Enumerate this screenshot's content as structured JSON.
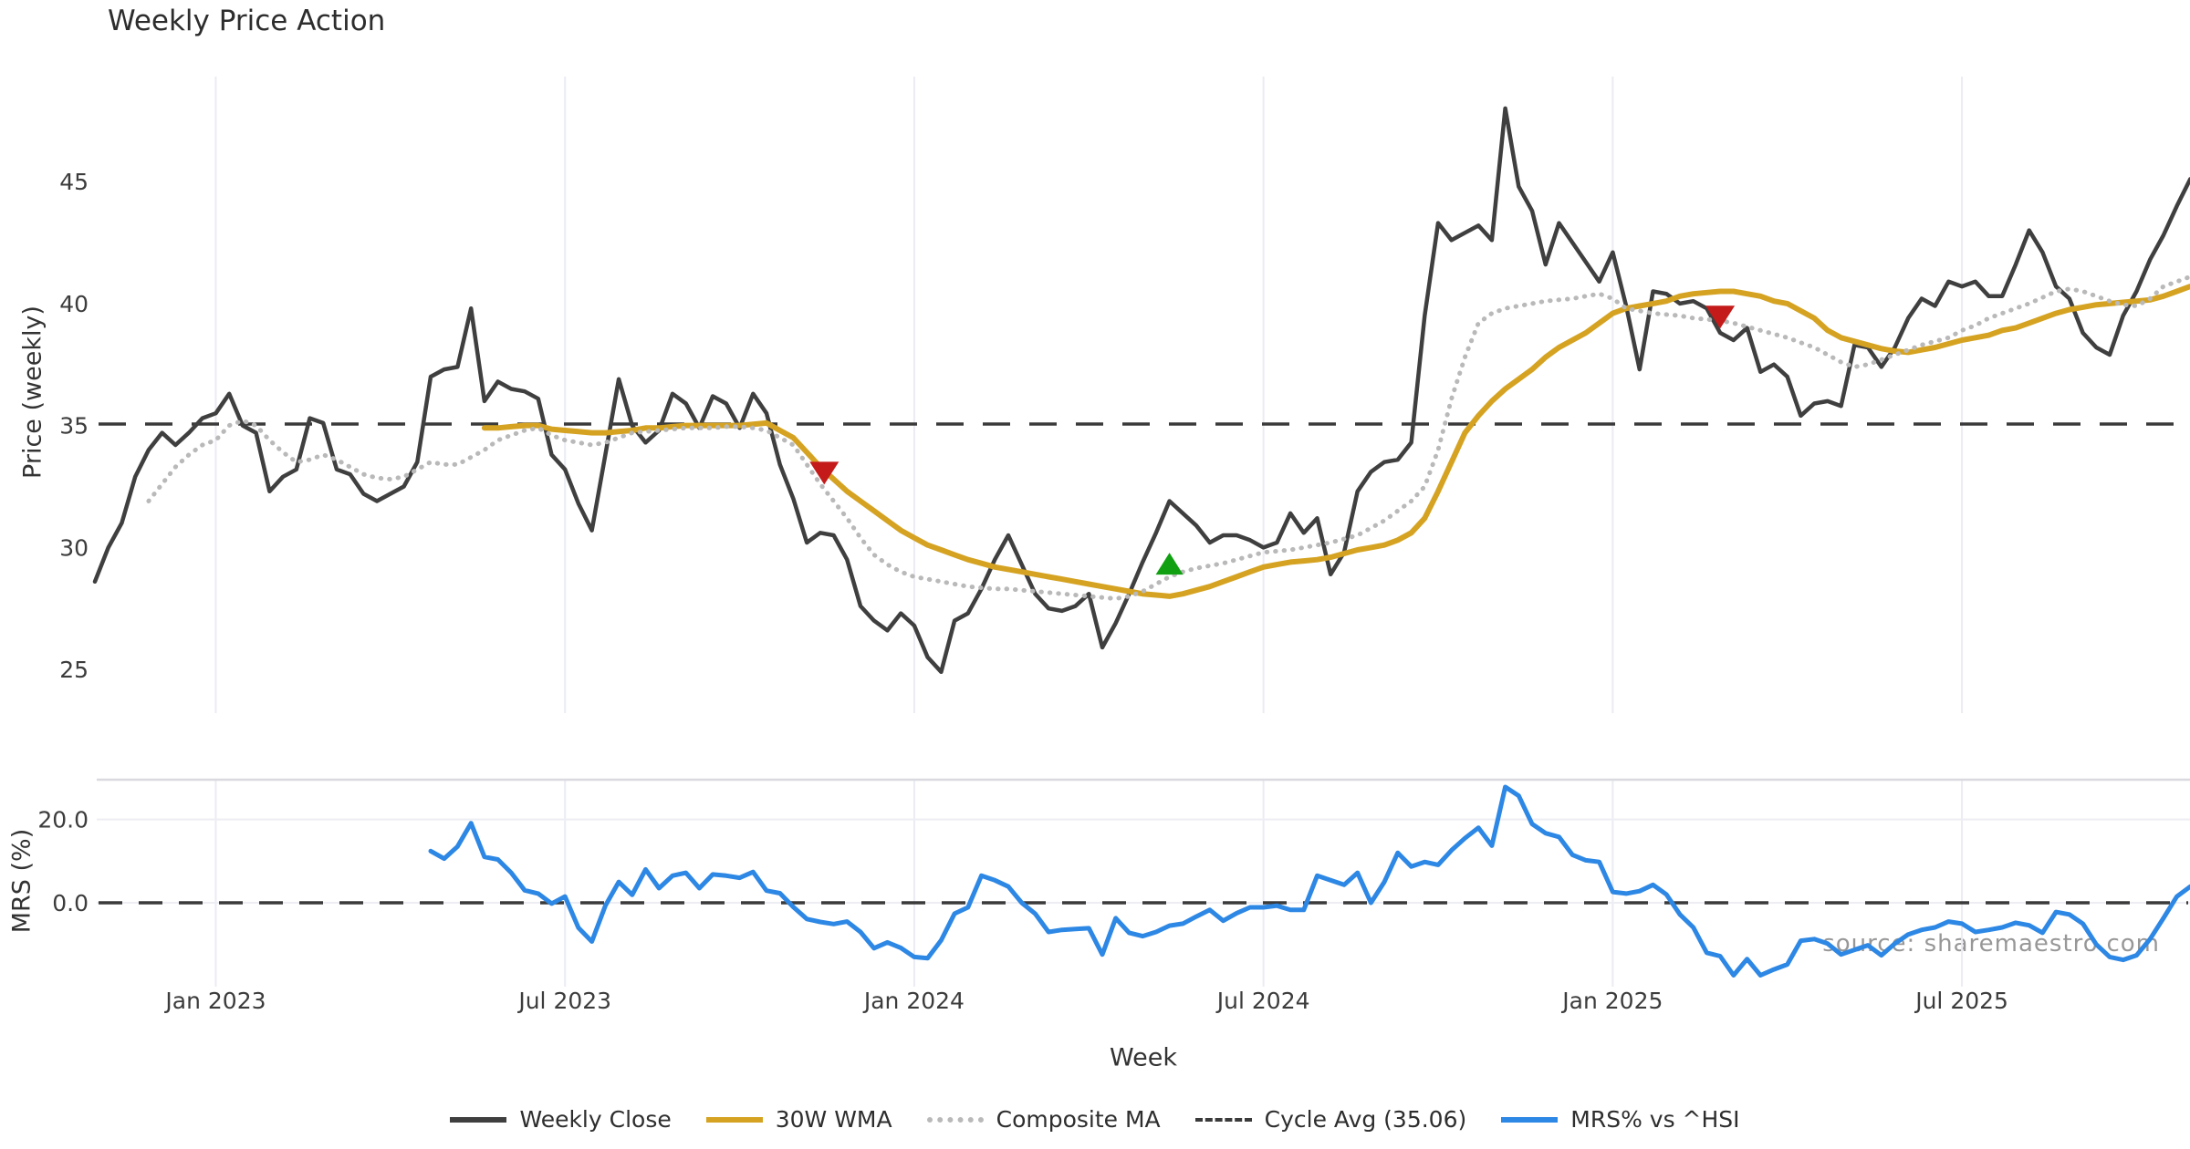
{
  "title": "Weekly Price Action",
  "watermark": "source: sharemaestro.com",
  "x_axis": {
    "label": "Week",
    "ticks": [
      {
        "week": 9,
        "label": "Jan 2023"
      },
      {
        "week": 35,
        "label": "Jul 2023"
      },
      {
        "week": 61,
        "label": "Jan 2024"
      },
      {
        "week": 87,
        "label": "Jul 2024"
      },
      {
        "week": 113,
        "label": "Jan 2025"
      },
      {
        "week": 139,
        "label": "Jul 2025"
      }
    ]
  },
  "legend": [
    {
      "label": "Weekly Close",
      "color": "#3f3f3f",
      "style": "solid"
    },
    {
      "label": "30W WMA",
      "color": "#d5a321",
      "style": "solid"
    },
    {
      "label": "Composite MA",
      "color": "#b9b9b9",
      "style": "dotted"
    },
    {
      "label": "Cycle Avg (35.06)",
      "color": "#3a3a3a",
      "style": "dashed"
    },
    {
      "label": "MRS% vs ^HSI",
      "color": "#2d87e4",
      "style": "solid"
    }
  ],
  "colors": {
    "background": "#ffffff",
    "grid": "#ebebf3",
    "panel_border": "#d9d9e0",
    "tick_text": "#3c3c3c",
    "close_line": "#3f3f3f",
    "wma_line": "#d5a321",
    "composite_line": "#b9b9b9",
    "cycle_avg_line": "#3a3a3a",
    "mrs_line": "#2d87e4",
    "sell_marker": "#c41a1a",
    "buy_marker": "#11a011"
  },
  "chart_data": [
    {
      "type": "line",
      "panel": "price",
      "title": "Weekly Price Action",
      "xlabel": "Week",
      "ylabel": "Price (weekly)",
      "ylim": [
        23.5,
        49.5
      ],
      "y_ticks": [
        45,
        40,
        35,
        30,
        25
      ],
      "grid": "vertical-only",
      "cycle_avg": 35.06,
      "series": [
        {
          "name": "Weekly Close",
          "color": "#3f3f3f",
          "style": "solid",
          "width": 4.5,
          "start_week": 0,
          "values": [
            28.6,
            30.0,
            31.0,
            32.9,
            34.0,
            34.7,
            34.2,
            34.7,
            35.3,
            35.5,
            36.3,
            35.0,
            34.7,
            32.3,
            32.9,
            33.2,
            35.3,
            35.1,
            33.2,
            33.0,
            32.2,
            31.9,
            32.2,
            32.5,
            33.5,
            37.0,
            37.3,
            37.4,
            39.8,
            36.0,
            36.8,
            36.5,
            36.4,
            36.1,
            33.8,
            33.2,
            31.8,
            30.7,
            33.8,
            36.9,
            35.0,
            34.3,
            34.8,
            36.3,
            35.9,
            34.9,
            36.2,
            35.9,
            34.9,
            36.3,
            35.5,
            33.4,
            32.0,
            30.2,
            30.6,
            30.5,
            29.5,
            27.6,
            27.0,
            26.6,
            27.3,
            26.8,
            25.5,
            24.9,
            27.0,
            27.3,
            28.3,
            29.5,
            30.5,
            29.3,
            28.1,
            27.5,
            27.4,
            27.6,
            28.1,
            25.9,
            26.9,
            28.1,
            29.4,
            30.6,
            31.9,
            31.4,
            30.9,
            30.2,
            30.5,
            30.5,
            30.3,
            30.0,
            30.2,
            31.4,
            30.6,
            31.2,
            28.9,
            29.8,
            32.3,
            33.1,
            33.5,
            33.6,
            34.3,
            39.5,
            43.3,
            42.6,
            42.9,
            43.2,
            42.6,
            48.0,
            44.8,
            43.8,
            41.6,
            43.3,
            42.5,
            41.7,
            40.9,
            42.1,
            39.9,
            37.3,
            40.5,
            40.4,
            40.0,
            40.1,
            39.8,
            38.8,
            38.5,
            39.0,
            37.2,
            37.5,
            37.0,
            35.4,
            35.9,
            36.0,
            35.8,
            38.3,
            38.2,
            37.4,
            38.2,
            39.4,
            40.2,
            39.9,
            40.9,
            40.7,
            40.9,
            40.3,
            40.3,
            41.6,
            43.0,
            42.1,
            40.7,
            40.2,
            38.8,
            38.2,
            37.9,
            39.5,
            40.5,
            41.8,
            42.8,
            44.0,
            45.1
          ]
        },
        {
          "name": "30W WMA",
          "color": "#d5a321",
          "style": "solid",
          "width": 6,
          "start_week": 29,
          "values": [
            34.9,
            34.9,
            34.95,
            35.0,
            35.0,
            34.85,
            34.8,
            34.75,
            34.7,
            34.7,
            34.75,
            34.8,
            34.9,
            34.9,
            34.95,
            35.0,
            35.0,
            35.0,
            35.0,
            35.0,
            35.05,
            35.1,
            34.8,
            34.5,
            33.9,
            33.3,
            32.8,
            32.3,
            31.9,
            31.5,
            31.1,
            30.7,
            30.4,
            30.1,
            29.9,
            29.7,
            29.5,
            29.35,
            29.2,
            29.1,
            29.0,
            28.9,
            28.8,
            28.7,
            28.6,
            28.5,
            28.4,
            28.3,
            28.2,
            28.1,
            28.05,
            28.0,
            28.1,
            28.25,
            28.4,
            28.6,
            28.8,
            29.0,
            29.2,
            29.3,
            29.4,
            29.45,
            29.5,
            29.6,
            29.75,
            29.9,
            30.0,
            30.1,
            30.3,
            30.6,
            31.2,
            32.3,
            33.5,
            34.7,
            35.4,
            36.0,
            36.5,
            36.9,
            37.3,
            37.8,
            38.2,
            38.5,
            38.8,
            39.2,
            39.6,
            39.8,
            39.9,
            40.0,
            40.1,
            40.3,
            40.4,
            40.45,
            40.5,
            40.5,
            40.4,
            40.3,
            40.1,
            40.0,
            39.7,
            39.4,
            38.9,
            38.6,
            38.45,
            38.3,
            38.15,
            38.05,
            38.0,
            38.1,
            38.2,
            38.35,
            38.5,
            38.6,
            38.7,
            38.9,
            39.0,
            39.2,
            39.4,
            39.6,
            39.75,
            39.85,
            39.95,
            40.0,
            40.05,
            40.1,
            40.15,
            40.3,
            40.5,
            40.7
          ]
        },
        {
          "name": "Composite MA",
          "color": "#b9b9b9",
          "style": "dotted",
          "width": 5,
          "start_week": 4,
          "values": [
            31.9,
            32.6,
            33.3,
            33.8,
            34.2,
            34.4,
            35.0,
            35.2,
            35.0,
            34.4,
            33.9,
            33.5,
            33.6,
            33.8,
            33.6,
            33.3,
            33.0,
            32.85,
            32.8,
            32.9,
            33.2,
            33.5,
            33.4,
            33.4,
            33.7,
            34.0,
            34.4,
            34.6,
            34.8,
            34.9,
            34.6,
            34.4,
            34.3,
            34.2,
            34.3,
            34.5,
            34.7,
            34.75,
            34.8,
            34.85,
            34.9,
            34.9,
            34.9,
            34.95,
            34.95,
            34.9,
            34.8,
            34.5,
            34.2,
            33.4,
            32.6,
            31.9,
            31.2,
            30.4,
            29.7,
            29.3,
            29.0,
            28.8,
            28.7,
            28.6,
            28.5,
            28.4,
            28.35,
            28.3,
            28.3,
            28.25,
            28.2,
            28.15,
            28.1,
            28.05,
            28.0,
            27.95,
            27.9,
            28.0,
            28.2,
            28.5,
            28.8,
            29.0,
            29.15,
            29.25,
            29.35,
            29.5,
            29.65,
            29.8,
            29.85,
            29.9,
            30.0,
            30.1,
            30.2,
            30.35,
            30.5,
            30.8,
            31.1,
            31.5,
            31.9,
            32.5,
            34.0,
            36.1,
            37.8,
            39.2,
            39.6,
            39.8,
            39.9,
            40.0,
            40.1,
            40.15,
            40.2,
            40.3,
            40.4,
            40.2,
            39.8,
            39.7,
            39.6,
            39.55,
            39.5,
            39.4,
            39.35,
            39.3,
            39.2,
            39.05,
            38.9,
            38.75,
            38.6,
            38.4,
            38.2,
            37.9,
            37.6,
            37.4,
            37.5,
            37.7,
            37.9,
            38.1,
            38.3,
            38.45,
            38.6,
            38.9,
            39.1,
            39.4,
            39.6,
            39.8,
            40.0,
            40.25,
            40.5,
            40.6,
            40.5,
            40.3,
            40.1,
            39.95,
            39.9,
            40.2,
            40.7,
            40.9,
            41.1
          ]
        },
        {
          "name": "Cycle Avg (35.06)",
          "color": "#3a3a3a",
          "style": "dashed",
          "value": 35.06
        }
      ],
      "markers": [
        {
          "shape": "triangle-down",
          "color": "#c41a1a",
          "week": 54.3,
          "value": 33.1
        },
        {
          "shape": "triangle-up",
          "color": "#11a011",
          "week": 80.0,
          "value": 29.3
        },
        {
          "shape": "triangle-down",
          "color": "#c41a1a",
          "week": 121.0,
          "value": 39.5
        }
      ]
    },
    {
      "type": "line",
      "panel": "mrs",
      "ylabel": "MRS (%)",
      "ylim": [
        -22,
        30
      ],
      "y_ticks": [
        {
          "v": 20,
          "label": "20.0"
        },
        {
          "v": 0,
          "label": "0.0"
        }
      ],
      "zero_line": "dashed",
      "series": [
        {
          "name": "MRS% vs ^HSI",
          "color": "#2d87e4",
          "style": "solid",
          "width": 5,
          "start_week": 25,
          "values": [
            12.4,
            10.6,
            13.5,
            19.1,
            11.0,
            10.4,
            7.2,
            3.0,
            2.2,
            -0.2,
            1.5,
            -6.0,
            -9.3,
            -0.7,
            5.0,
            1.9,
            8.0,
            3.5,
            6.5,
            7.2,
            3.5,
            6.8,
            6.5,
            6.0,
            7.4,
            2.9,
            2.3,
            -1.0,
            -3.9,
            -4.6,
            -5.1,
            -4.5,
            -7.0,
            -10.9,
            -9.5,
            -10.8,
            -13.0,
            -13.3,
            -9.0,
            -2.6,
            -1.1,
            6.5,
            5.4,
            3.9,
            0.0,
            -2.6,
            -7.0,
            -6.5,
            -6.3,
            -6.1,
            -12.4,
            -3.7,
            -7.2,
            -8.0,
            -7.0,
            -5.5,
            -5.0,
            -3.3,
            -1.7,
            -4.3,
            -2.5,
            -1.1,
            -1.1,
            -0.7,
            -1.7,
            -1.7,
            6.5,
            5.4,
            4.3,
            7.2,
            0.0,
            5.0,
            12.0,
            8.7,
            9.8,
            9.1,
            12.6,
            15.5,
            18.0,
            13.7,
            27.8,
            25.7,
            18.9,
            16.7,
            15.8,
            11.5,
            10.2,
            9.8,
            2.6,
            2.2,
            2.8,
            4.3,
            2.0,
            -2.8,
            -5.9,
            -12.0,
            -12.8,
            -17.4,
            -13.5,
            -17.4,
            -16.0,
            -14.8,
            -9.1,
            -8.7,
            -9.8,
            -12.4,
            -11.3,
            -10.2,
            -12.6,
            -9.8,
            -7.6,
            -6.5,
            -5.9,
            -4.5,
            -5.0,
            -7.0,
            -6.5,
            -5.9,
            -4.8,
            -5.4,
            -7.2,
            -2.2,
            -2.8,
            -5.0,
            -10.0,
            -13.0,
            -13.7,
            -12.6,
            -8.7,
            -3.7,
            1.5,
            3.9
          ]
        }
      ]
    }
  ]
}
